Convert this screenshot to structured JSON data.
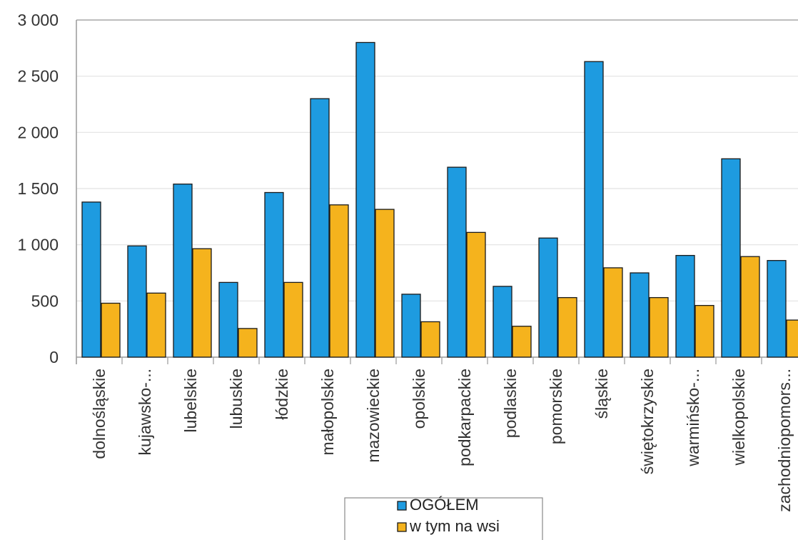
{
  "chart_data": {
    "type": "bar",
    "categories": [
      "dolnośląskie",
      "kujawsko-...",
      "lubelskie",
      "lubuskie",
      "łódzkie",
      "małopolskie",
      "mazowieckie",
      "opolskie",
      "podkarpackie",
      "podlaskie",
      "pomorskie",
      "śląskie",
      "świętokrzyskie",
      "warmińsko-...",
      "wielkopolskie",
      "zachodniopomors..."
    ],
    "series": [
      {
        "name": "OGÓŁEM",
        "color": "#1E9BE0",
        "values": [
          1380,
          990,
          1540,
          665,
          1465,
          2300,
          2800,
          560,
          1690,
          630,
          1060,
          2630,
          750,
          905,
          1765,
          860
        ]
      },
      {
        "name": "w tym na wsi",
        "color": "#F5B31D",
        "values": [
          480,
          570,
          965,
          255,
          665,
          1355,
          1315,
          315,
          1110,
          275,
          530,
          795,
          530,
          460,
          895,
          330
        ]
      }
    ],
    "yticks": [
      "0",
      "500",
      "1 000",
      "1 500",
      "2 000",
      "2 500",
      "3 000"
    ],
    "ylim": [
      0,
      3000
    ],
    "grid": true,
    "legend_position": "bottom"
  }
}
